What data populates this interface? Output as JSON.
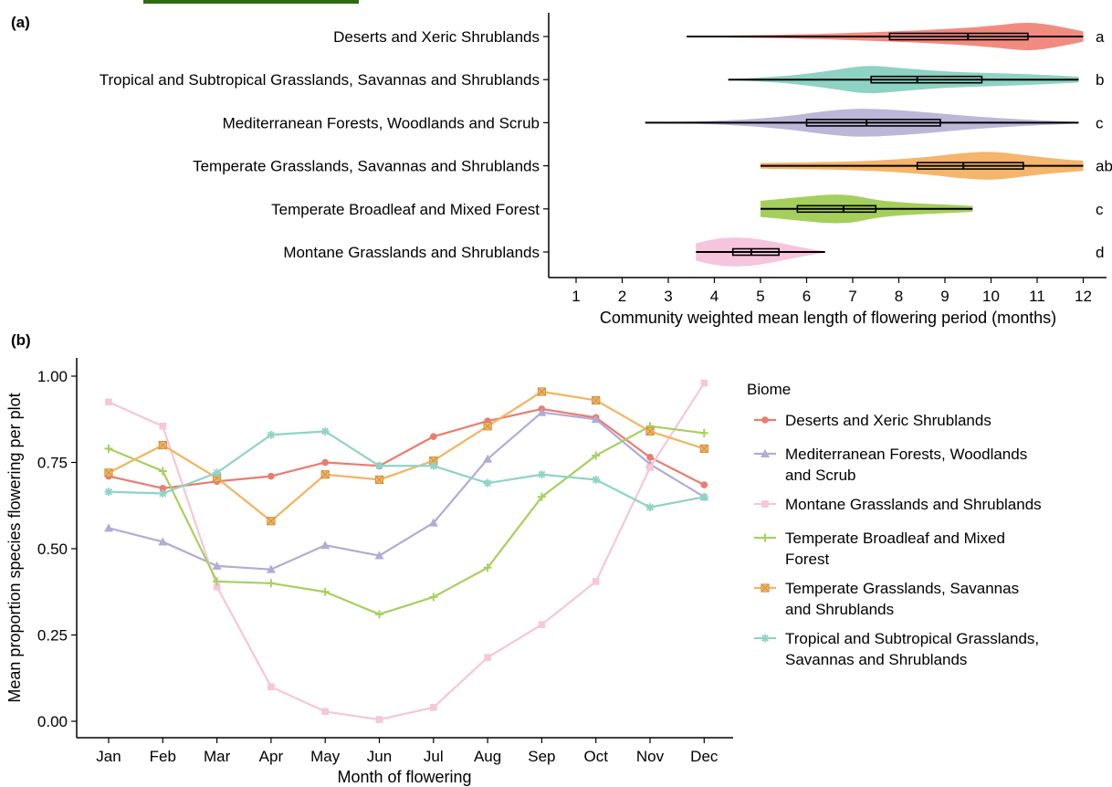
{
  "panel_a": {
    "label": "(a)",
    "xlabel": "Community weighted mean length of flowering period (months)",
    "xticks": [
      "1",
      "2",
      "3",
      "4",
      "5",
      "6",
      "7",
      "8",
      "9",
      "10",
      "11",
      "12"
    ]
  },
  "panel_b": {
    "label": "(b)",
    "xlabel": "Month of flowering",
    "ylabel": "Mean proportion species flowering per plot",
    "yticks": [
      "0.00",
      "0.25",
      "0.50",
      "0.75",
      "1.00"
    ],
    "legend_title": "Biome",
    "legend_items": [
      [
        "Deserts and Xeric Shrublands"
      ],
      [
        "Mediterranean Forests, Woodlands",
        "and Scrub"
      ],
      [
        "Montane Grasslands and Shrublands"
      ],
      [
        "Temperate Broadleaf and Mixed",
        "Forest"
      ],
      [
        "Temperate Grasslands, Savannas",
        "and Shrublands"
      ],
      [
        "Tropical and Subtropical Grasslands,",
        "Savannas and Shrublands"
      ]
    ]
  },
  "chart_data": [
    {
      "type": "violin",
      "panel": "(a)",
      "xlabel": "Community weighted mean length of flowering period (months)",
      "xlim": [
        0.5,
        12.5
      ],
      "categories": [
        "Deserts and Xeric Shrublands",
        "Tropical and Subtropical Grasslands, Savannas and Shrublands",
        "Mediterranean Forests, Woodlands and Scrub",
        "Temperate Grasslands, Savannas and Shrublands",
        "Temperate Broadleaf and Mixed Forest",
        "Montane Grasslands and Shrublands"
      ],
      "significance_letters": [
        "a",
        "b",
        "c",
        "ab",
        "c",
        "d"
      ],
      "colors": [
        "#f28b7f",
        "#8ed2c4",
        "#bcb6d8",
        "#f5b56a",
        "#a5cf5b",
        "#f6c4dc"
      ],
      "summary": [
        {
          "min": 3.4,
          "q1": 7.8,
          "median": 9.5,
          "q3": 10.8,
          "max": 12.0
        },
        {
          "min": 4.3,
          "q1": 7.4,
          "median": 8.4,
          "q3": 9.8,
          "max": 11.9
        },
        {
          "min": 2.5,
          "q1": 6.0,
          "median": 7.3,
          "q3": 8.9,
          "max": 11.9
        },
        {
          "min": 5.0,
          "q1": 8.4,
          "median": 9.4,
          "q3": 10.7,
          "max": 12.0
        },
        {
          "min": 5.0,
          "q1": 5.8,
          "median": 6.8,
          "q3": 7.5,
          "max": 9.6
        },
        {
          "min": 3.6,
          "q1": 4.4,
          "median": 4.8,
          "q3": 5.4,
          "max": 6.4
        }
      ],
      "density_x": [
        [
          3.4,
          4.5,
          6.0,
          7.5,
          9.0,
          10.0,
          10.8,
          11.4,
          12.0
        ],
        [
          4.3,
          5.5,
          6.5,
          7.3,
          8.0,
          9.0,
          10.0,
          11.0,
          11.9
        ],
        [
          2.5,
          4.0,
          5.5,
          6.5,
          7.3,
          8.5,
          9.5,
          10.8,
          11.9
        ],
        [
          5.0,
          6.5,
          7.5,
          8.5,
          9.3,
          10.0,
          10.8,
          11.5,
          12.0
        ],
        [
          5.0,
          5.5,
          6.0,
          6.5,
          7.0,
          7.5,
          8.2,
          9.0,
          9.6
        ],
        [
          3.6,
          4.0,
          4.4,
          4.8,
          5.2,
          5.6,
          6.0,
          6.4
        ]
      ],
      "density": [
        [
          0.02,
          0.07,
          0.15,
          0.3,
          0.5,
          0.72,
          1.0,
          0.75,
          0.35
        ],
        [
          0.02,
          0.2,
          0.6,
          1.0,
          0.8,
          0.55,
          0.45,
          0.35,
          0.2
        ],
        [
          0.02,
          0.08,
          0.4,
          0.85,
          1.0,
          0.75,
          0.45,
          0.2,
          0.05
        ],
        [
          0.2,
          0.25,
          0.35,
          0.55,
          0.85,
          1.0,
          0.7,
          0.45,
          0.35
        ],
        [
          0.55,
          0.7,
          0.85,
          1.0,
          0.95,
          0.6,
          0.4,
          0.3,
          0.2
        ],
        [
          0.6,
          0.9,
          1.0,
          0.95,
          0.75,
          0.5,
          0.25,
          0.05
        ]
      ]
    },
    {
      "type": "line",
      "panel": "(b)",
      "xlabel": "Month of flowering",
      "ylabel": "Mean proportion species flowering per plot",
      "ylim": [
        0,
        1
      ],
      "categories": [
        "Jan",
        "Feb",
        "Mar",
        "Apr",
        "May",
        "Jun",
        "Jul",
        "Aug",
        "Sep",
        "Oct",
        "Nov",
        "Dec"
      ],
      "series": [
        {
          "name": "Deserts and Xeric Shrublands",
          "color": "#ec7b6f",
          "marker": "circle",
          "values": [
            0.71,
            0.675,
            0.695,
            0.71,
            0.75,
            0.74,
            0.825,
            0.87,
            0.905,
            0.88,
            0.765,
            0.685
          ]
        },
        {
          "name": "Mediterranean Forests, Woodlands and Scrub",
          "color": "#b3abd6",
          "marker": "triangle",
          "values": [
            0.56,
            0.52,
            0.45,
            0.44,
            0.51,
            0.48,
            0.575,
            0.76,
            0.895,
            0.875,
            0.745,
            0.65
          ]
        },
        {
          "name": "Montane Grasslands and Shrublands",
          "color": "#f6c6da",
          "marker": "square",
          "values": [
            0.925,
            0.855,
            0.39,
            0.1,
            0.028,
            0.005,
            0.04,
            0.185,
            0.28,
            0.405,
            0.735,
            0.98
          ]
        },
        {
          "name": "Temperate Broadleaf and Mixed Forest",
          "color": "#a6d05e",
          "marker": "plus",
          "values": [
            0.79,
            0.725,
            0.405,
            0.4,
            0.375,
            0.31,
            0.36,
            0.445,
            0.65,
            0.77,
            0.855,
            0.835
          ]
        },
        {
          "name": "Temperate Grasslands, Savannas and Shrublands",
          "color": "#f4b45f",
          "marker": "boxsquare",
          "values": [
            0.72,
            0.8,
            0.705,
            0.58,
            0.715,
            0.7,
            0.755,
            0.855,
            0.955,
            0.93,
            0.84,
            0.79
          ]
        },
        {
          "name": "Tropical and Subtropical Grasslands, Savannas and Shrublands",
          "color": "#8fd3c6",
          "marker": "asterisk",
          "values": [
            0.665,
            0.66,
            0.72,
            0.83,
            0.84,
            0.74,
            0.74,
            0.69,
            0.715,
            0.7,
            0.62,
            0.65
          ]
        }
      ]
    }
  ]
}
